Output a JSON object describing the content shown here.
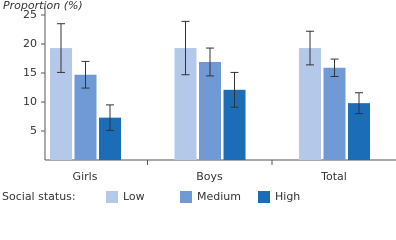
{
  "chart_data": {
    "type": "bar",
    "y_label": "Proportion (%)",
    "categories": [
      "Girls",
      "Boys",
      "Total"
    ],
    "legend_title": "Social status:",
    "series": [
      {
        "name": "Low",
        "color": "#b4c8e9",
        "values": [
          19.3,
          19.3,
          19.3
        ],
        "errors": [
          4.2,
          4.6,
          2.9
        ]
      },
      {
        "name": "Medium",
        "color": "#6f9ad5",
        "values": [
          14.7,
          16.9,
          15.9
        ],
        "errors": [
          2.3,
          2.4,
          1.5
        ]
      },
      {
        "name": "High",
        "color": "#1a6db6",
        "values": [
          7.3,
          12.1,
          9.8
        ],
        "errors": [
          2.2,
          3.0,
          1.8
        ]
      }
    ],
    "ylim": [
      0,
      27
    ],
    "yticks": [
      5,
      10,
      15,
      20,
      25
    ],
    "grid": false,
    "legend_position": "bottom"
  }
}
